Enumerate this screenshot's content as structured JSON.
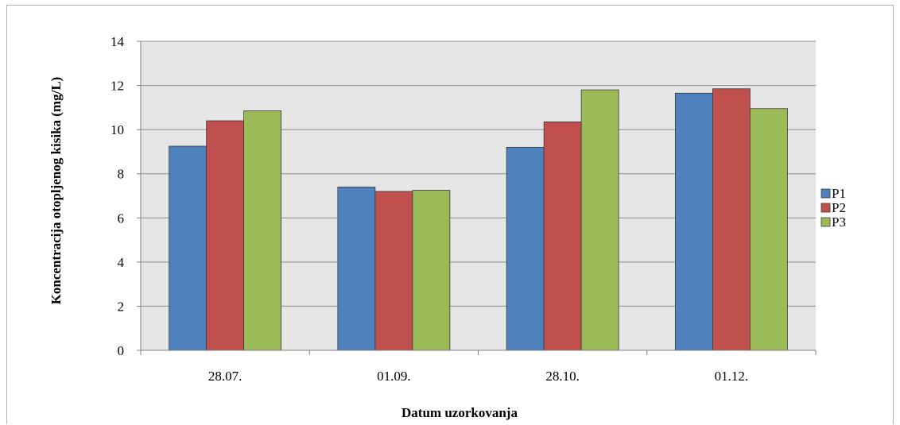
{
  "chart_data": {
    "type": "bar",
    "categories": [
      "28.07.",
      "01.09.",
      "28.10.",
      "01.12."
    ],
    "series": [
      {
        "name": "P1",
        "color": "#4f81bd",
        "values": [
          9.25,
          7.4,
          9.2,
          11.65
        ]
      },
      {
        "name": "P2",
        "color": "#c0504d",
        "values": [
          10.4,
          7.2,
          10.35,
          11.85
        ]
      },
      {
        "name": "P3",
        "color": "#9bbb59",
        "values": [
          10.85,
          7.25,
          11.8,
          10.95
        ]
      }
    ],
    "xlabel": "Datum uzorkovanja",
    "ylabel": "Koncentracija otopljenog kisika (mg/L)",
    "ylim": [
      0,
      14
    ],
    "yticks": [
      0,
      2,
      4,
      6,
      8,
      10,
      12,
      14
    ],
    "grid": true,
    "legend": "right"
  }
}
